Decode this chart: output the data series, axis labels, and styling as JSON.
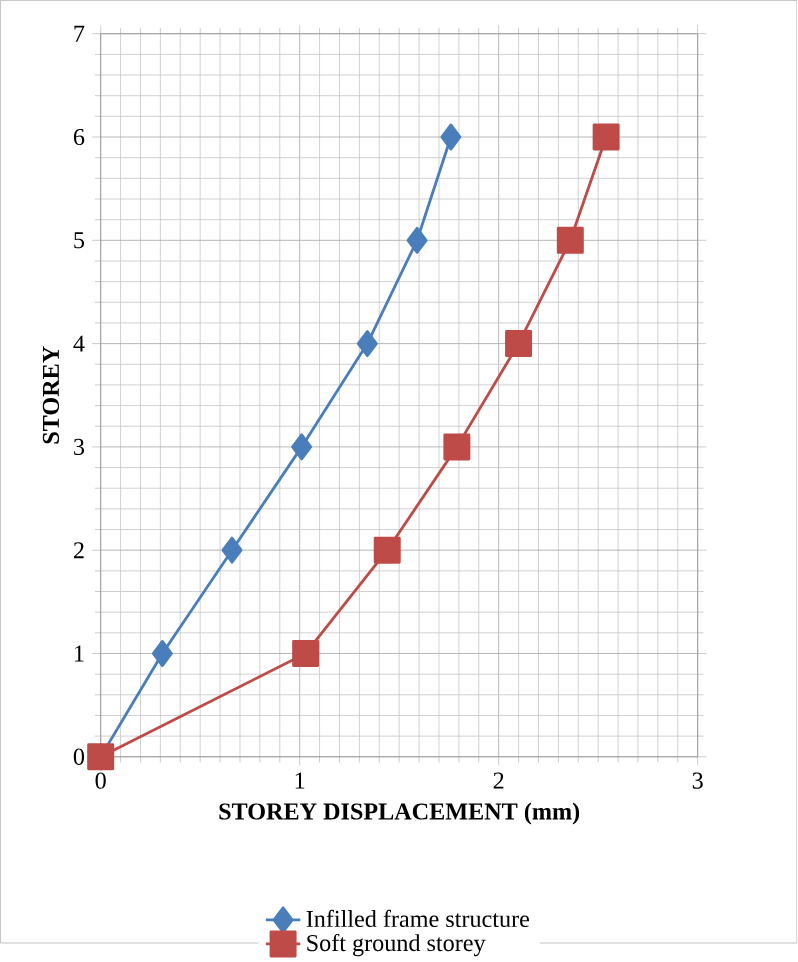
{
  "chart_data": {
    "type": "line",
    "xlabel": "STOREY  DISPLACEMENT  (mm)",
    "ylabel": "STOREY",
    "series": [
      {
        "name": "Infilled frame structure",
        "color": "#4a7ebb",
        "marker": "diamond",
        "x": [
          0,
          0.31,
          0.66,
          1.01,
          1.34,
          1.59,
          1.76
        ],
        "values": [
          0,
          1,
          2,
          3,
          4,
          5,
          6
        ]
      },
      {
        "name": "Soft ground storey",
        "color": "#be4b48",
        "marker": "square",
        "x": [
          0,
          1.03,
          1.44,
          1.79,
          2.1,
          2.36,
          2.54
        ],
        "values": [
          0,
          1,
          2,
          3,
          4,
          5,
          6
        ]
      }
    ],
    "xlim": [
      0,
      3
    ],
    "ylim": [
      0,
      7
    ],
    "xticks": [
      0,
      1,
      2,
      3
    ],
    "yticks": [
      0,
      1,
      2,
      3,
      4,
      5,
      6,
      7
    ],
    "grid": true,
    "legend": "bottom",
    "line_style": "solid"
  }
}
